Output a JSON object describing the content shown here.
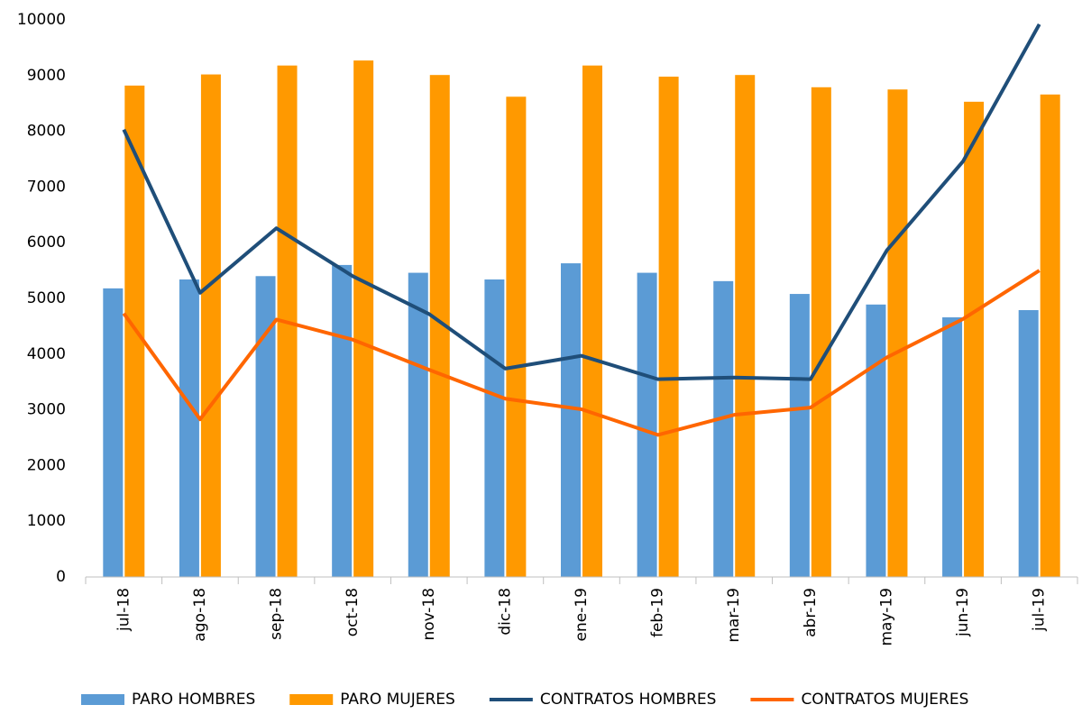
{
  "chart_data": {
    "type": "bar",
    "categories": [
      "jul-18",
      "ago-18",
      "sep-18",
      "oct-18",
      "nov-18",
      "dic-18",
      "ene-19",
      "feb-19",
      "mar-19",
      "abr-19",
      "may-19",
      "jun-19",
      "jul-19"
    ],
    "series": [
      {
        "name": "PARO HOMBRES",
        "type": "bar",
        "color": "#5b9bd5",
        "values": [
          5180,
          5340,
          5400,
          5600,
          5460,
          5340,
          5630,
          5460,
          5310,
          5080,
          4890,
          4660,
          4790
        ]
      },
      {
        "name": "PARO MUJERES",
        "type": "bar",
        "color": "#ff9900",
        "values": [
          8820,
          9020,
          9180,
          9270,
          9010,
          8620,
          9180,
          8980,
          9010,
          8790,
          8750,
          8530,
          8660
        ]
      },
      {
        "name": "CONTRATOS HOMBRES",
        "type": "line",
        "color": "#1f4e79",
        "values": [
          8030,
          5100,
          6260,
          5400,
          4720,
          3740,
          3970,
          3550,
          3580,
          3550,
          5860,
          7460,
          9920
        ]
      },
      {
        "name": "CONTRATOS MUJERES",
        "type": "line",
        "color": "#ff6600",
        "values": [
          4730,
          2830,
          4620,
          4260,
          3720,
          3200,
          3010,
          2550,
          2910,
          3040,
          3940,
          4630,
          5500
        ]
      }
    ],
    "ylim": [
      0,
      10000
    ],
    "yticks": [
      0,
      1000,
      2000,
      3000,
      4000,
      5000,
      6000,
      7000,
      8000,
      9000,
      10000
    ],
    "grid": false,
    "legend": "bottom"
  }
}
